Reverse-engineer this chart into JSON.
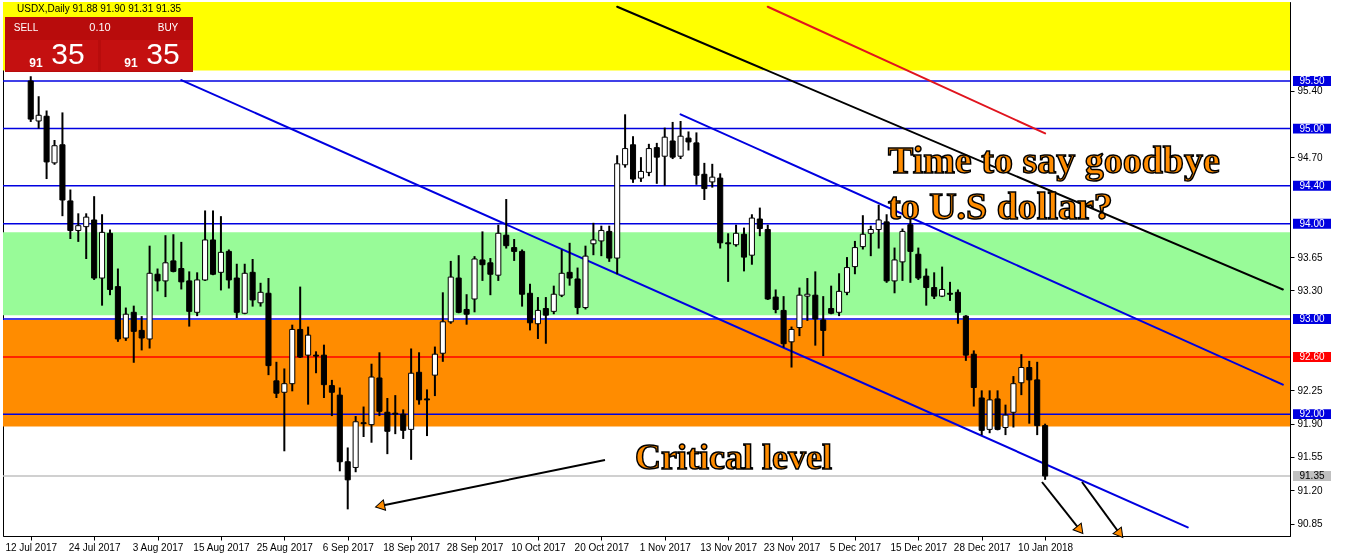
{
  "chart_data": {
    "type": "candlestick",
    "title": "USDX,Daily 91.88 91.90 91.31 91.35",
    "categories": [
      "12 Jul 2017",
      null,
      null,
      null,
      null,
      null,
      null,
      null,
      "24 Jul 2017",
      null,
      null,
      null,
      null,
      null,
      null,
      null,
      "3 Aug 2017",
      null,
      null,
      null,
      null,
      null,
      null,
      null,
      "15 Aug 2017",
      null,
      null,
      null,
      null,
      null,
      null,
      null,
      "25 Aug 2017",
      null,
      null,
      null,
      null,
      null,
      null,
      null,
      "6 Sep 2017",
      null,
      null,
      null,
      null,
      null,
      null,
      null,
      "18 Sep 2017",
      null,
      null,
      null,
      null,
      null,
      null,
      null,
      "28 Sep 2017",
      null,
      null,
      null,
      null,
      null,
      null,
      null,
      "10 Oct 2017",
      null,
      null,
      null,
      null,
      null,
      null,
      null,
      "20 Oct 2017",
      null,
      null,
      null,
      null,
      null,
      null,
      null,
      "1 Nov 2017",
      null,
      null,
      null,
      null,
      null,
      null,
      null,
      "13 Nov 2017",
      null,
      null,
      null,
      null,
      null,
      null,
      null,
      "23 Nov 2017",
      null,
      null,
      null,
      null,
      null,
      null,
      null,
      "5 Dec 2017",
      null,
      null,
      null,
      null,
      null,
      null,
      null,
      "15 Dec 2017",
      null,
      null,
      null,
      null,
      null,
      null,
      null,
      "28 Dec 2017",
      null,
      null,
      null,
      null,
      null,
      null,
      null,
      "10 Jan 2018",
      null,
      null,
      null,
      null,
      null,
      null,
      null,
      null,
      null,
      null,
      null,
      null,
      null,
      null,
      null,
      null,
      null,
      null,
      null,
      null,
      null,
      null,
      null,
      null,
      null,
      null,
      null,
      null,
      null,
      null
    ],
    "ohlc": [
      [
        95.5,
        95.55,
        95.07,
        95.1
      ],
      [
        95.08,
        95.34,
        95.0,
        95.14
      ],
      [
        95.13,
        95.19,
        94.47,
        94.65
      ],
      [
        94.64,
        94.88,
        94.62,
        94.82
      ],
      [
        94.83,
        95.17,
        94.08,
        94.25
      ],
      [
        94.24,
        94.36,
        93.84,
        93.93
      ],
      [
        93.93,
        94.11,
        93.81,
        93.98
      ],
      [
        93.97,
        94.11,
        93.63,
        94.07
      ],
      [
        94.04,
        94.29,
        93.41,
        93.43
      ],
      [
        93.43,
        94.1,
        93.14,
        93.91
      ],
      [
        93.9,
        93.94,
        93.25,
        93.31
      ],
      [
        93.34,
        93.53,
        92.76,
        92.79
      ],
      [
        92.8,
        93.12,
        92.77,
        93.05
      ],
      [
        93.07,
        93.14,
        92.54,
        92.87
      ],
      [
        92.88,
        93.03,
        92.67,
        92.8
      ],
      [
        92.79,
        93.77,
        92.69,
        93.48
      ],
      [
        93.47,
        93.53,
        93.29,
        93.4
      ],
      [
        93.4,
        93.88,
        93.23,
        93.59
      ],
      [
        93.61,
        93.89,
        93.49,
        93.5
      ],
      [
        93.53,
        93.81,
        93.31,
        93.39
      ],
      [
        93.4,
        93.5,
        92.92,
        93.08
      ],
      [
        93.07,
        93.49,
        93.03,
        93.41
      ],
      [
        93.41,
        94.14,
        93.4,
        93.83
      ],
      [
        93.83,
        94.14,
        93.46,
        93.47
      ],
      [
        93.49,
        94.08,
        93.3,
        93.7
      ],
      [
        93.71,
        93.73,
        93.32,
        93.41
      ],
      [
        93.43,
        93.58,
        93.01,
        93.07
      ],
      [
        93.06,
        93.58,
        93.05,
        93.48
      ],
      [
        93.49,
        93.63,
        93.13,
        93.2
      ],
      [
        93.17,
        93.38,
        93.13,
        93.28
      ],
      [
        93.27,
        93.43,
        92.41,
        92.51
      ],
      [
        92.35,
        92.55,
        92.17,
        92.22
      ],
      [
        92.23,
        92.48,
        91.61,
        92.32
      ],
      [
        92.32,
        92.94,
        92.24,
        92.89
      ],
      [
        92.89,
        93.34,
        92.59,
        92.6
      ],
      [
        92.62,
        92.92,
        92.1,
        92.83
      ],
      [
        92.62,
        92.66,
        92.43,
        92.61
      ],
      [
        92.62,
        92.73,
        92.17,
        92.31
      ],
      [
        92.3,
        92.36,
        91.98,
        92.23
      ],
      [
        92.2,
        92.28,
        91.4,
        91.5
      ],
      [
        91.5,
        91.65,
        91.0,
        91.31
      ],
      [
        91.44,
        91.98,
        91.39,
        91.92
      ],
      [
        91.91,
        92.08,
        91.76,
        91.9
      ],
      [
        91.89,
        92.53,
        91.7,
        92.39
      ],
      [
        92.38,
        92.65,
        91.98,
        92.03
      ],
      [
        92.02,
        92.17,
        91.58,
        91.82
      ],
      [
        92.01,
        92.2,
        91.79,
        92.0
      ],
      [
        92.0,
        92.05,
        91.74,
        91.83
      ],
      [
        91.84,
        92.69,
        91.52,
        92.43
      ],
      [
        92.44,
        92.65,
        92.1,
        92.15
      ],
      [
        92.16,
        92.26,
        91.77,
        92.15
      ],
      [
        92.41,
        92.71,
        92.19,
        92.63
      ],
      [
        92.64,
        93.28,
        92.55,
        92.97
      ],
      [
        92.97,
        93.61,
        92.95,
        93.44
      ],
      [
        93.43,
        93.67,
        93.06,
        93.07
      ],
      [
        93.1,
        93.26,
        92.94,
        93.05
      ],
      [
        93.21,
        93.66,
        93.07,
        93.63
      ],
      [
        93.62,
        93.92,
        93.4,
        93.57
      ],
      [
        93.59,
        93.64,
        93.25,
        93.47
      ],
      [
        93.46,
        93.99,
        93.4,
        93.9
      ],
      [
        93.88,
        94.26,
        93.74,
        93.77
      ],
      [
        93.75,
        93.84,
        93.61,
        93.71
      ],
      [
        93.71,
        93.73,
        93.13,
        93.26
      ],
      [
        93.27,
        93.37,
        92.88,
        92.96
      ],
      [
        92.95,
        93.23,
        92.79,
        93.09
      ],
      [
        93.11,
        93.23,
        92.74,
        93.04
      ],
      [
        93.08,
        93.35,
        93.05,
        93.26
      ],
      [
        93.25,
        93.73,
        93.23,
        93.48
      ],
      [
        93.49,
        93.8,
        93.35,
        93.43
      ],
      [
        93.42,
        93.54,
        93.05,
        93.12
      ],
      [
        93.12,
        93.77,
        93.1,
        93.66
      ],
      [
        93.79,
        94.01,
        93.67,
        93.83
      ],
      [
        93.82,
        93.98,
        93.66,
        93.93
      ],
      [
        93.92,
        93.98,
        93.6,
        93.64
      ],
      [
        93.64,
        94.72,
        93.47,
        94.63
      ],
      [
        94.62,
        95.15,
        94.59,
        94.79
      ],
      [
        94.83,
        94.92,
        94.43,
        94.47
      ],
      [
        94.48,
        94.7,
        94.44,
        94.55
      ],
      [
        94.54,
        94.84,
        94.5,
        94.79
      ],
      [
        94.8,
        94.85,
        94.42,
        94.7
      ],
      [
        94.71,
        95.01,
        94.4,
        94.91
      ],
      [
        94.87,
        95.07,
        94.68,
        94.7
      ],
      [
        94.71,
        95.08,
        94.68,
        94.92
      ],
      [
        94.9,
        94.97,
        94.77,
        94.86
      ],
      [
        94.85,
        94.96,
        94.41,
        94.51
      ],
      [
        94.52,
        94.64,
        94.25,
        94.37
      ],
      [
        94.44,
        94.63,
        94.38,
        94.49
      ],
      [
        94.48,
        94.53,
        93.74,
        93.8
      ],
      [
        93.8,
        93.9,
        93.39,
        93.79
      ],
      [
        93.78,
        93.99,
        93.76,
        93.9
      ],
      [
        93.89,
        93.96,
        93.5,
        93.65
      ],
      [
        93.67,
        94.1,
        93.57,
        94.06
      ],
      [
        94.05,
        94.17,
        93.87,
        93.95
      ],
      [
        93.94,
        93.99,
        93.2,
        93.21
      ],
      [
        93.23,
        93.31,
        93.06,
        93.1
      ],
      [
        93.09,
        93.24,
        92.7,
        92.74
      ],
      [
        92.76,
        92.92,
        92.49,
        92.89
      ],
      [
        92.91,
        93.33,
        92.82,
        93.25
      ],
      [
        93.24,
        93.43,
        92.98,
        93.26
      ],
      [
        93.25,
        93.5,
        92.72,
        93.0
      ],
      [
        92.99,
        93.24,
        92.61,
        92.88
      ],
      [
        93.11,
        93.35,
        93.05,
        93.06
      ],
      [
        93.07,
        93.48,
        93.03,
        93.29
      ],
      [
        93.28,
        93.65,
        93.25,
        93.54
      ],
      [
        93.55,
        93.82,
        93.47,
        93.75
      ],
      [
        93.76,
        94.09,
        93.73,
        93.89
      ],
      [
        93.9,
        93.98,
        93.66,
        93.94
      ],
      [
        93.94,
        94.2,
        93.74,
        94.04
      ],
      [
        94.02,
        94.1,
        93.38,
        93.4
      ],
      [
        93.4,
        93.75,
        93.27,
        93.62
      ],
      [
        93.6,
        93.95,
        93.4,
        93.92
      ],
      [
        93.99,
        94.05,
        93.38,
        93.71
      ],
      [
        93.68,
        93.75,
        93.41,
        93.43
      ],
      [
        93.45,
        93.53,
        93.14,
        93.33
      ],
      [
        93.33,
        93.49,
        93.21,
        93.24
      ],
      [
        93.24,
        93.55,
        93.23,
        93.31
      ],
      [
        93.27,
        93.39,
        93.19,
        93.26
      ],
      [
        93.28,
        93.31,
        92.95,
        93.07
      ],
      [
        93.03,
        93.04,
        92.56,
        92.62
      ],
      [
        92.63,
        92.67,
        92.08,
        92.28
      ],
      [
        92.17,
        92.25,
        91.78,
        91.83
      ],
      [
        91.84,
        92.25,
        91.8,
        92.15
      ],
      [
        92.16,
        92.25,
        91.83,
        91.84
      ],
      [
        91.86,
        92.1,
        91.78,
        91.99
      ],
      [
        92.02,
        92.4,
        91.86,
        92.32
      ],
      [
        92.33,
        92.63,
        92.2,
        92.49
      ],
      [
        92.49,
        92.56,
        91.9,
        92.36
      ],
      [
        92.36,
        92.55,
        91.78,
        91.88
      ],
      [
        91.88,
        91.9,
        91.31,
        91.35
      ],
      null,
      null,
      null,
      null,
      null,
      null,
      null,
      null,
      null,
      null,
      null,
      null,
      null,
      null,
      null,
      null,
      null,
      null,
      null,
      null,
      null,
      null,
      null,
      null,
      null,
      null,
      null,
      null,
      null,
      null
    ],
    "series": [
      {
        "type": "line",
        "color": "#0000e0",
        "values": [
          null,
          null,
          null,
          null,
          null,
          null,
          null,
          null,
          null,
          null,
          null,
          null,
          null,
          null,
          null,
          null,
          null,
          null,
          null,
          95.51,
          null,
          null,
          null,
          null,
          null,
          null,
          null,
          null,
          null,
          null,
          null,
          null,
          null,
          null,
          null,
          null,
          null,
          null,
          null,
          null,
          null,
          null,
          null,
          null,
          null,
          null,
          null,
          null,
          null,
          null,
          null,
          null,
          null,
          null,
          null,
          null,
          null,
          null,
          null,
          null,
          null,
          null,
          null,
          null,
          null,
          null,
          null,
          null,
          null,
          null,
          null,
          null,
          null,
          null,
          null,
          null,
          null,
          null,
          null,
          null,
          null,
          null,
          null,
          null,
          null,
          null,
          null,
          null,
          null,
          null,
          null,
          null,
          null,
          null,
          null,
          null,
          null,
          null,
          null,
          null,
          null,
          null,
          null,
          null,
          null,
          null,
          null,
          null,
          null,
          null,
          null,
          null,
          null,
          null,
          null,
          null,
          null,
          null,
          null,
          null,
          null,
          null,
          null,
          null,
          null,
          null,
          null,
          null,
          null,
          null,
          null,
          null,
          null,
          null,
          null,
          null,
          null,
          null,
          null,
          null,
          null,
          null,
          null,
          null,
          null,
          null,
          90.81,
          null,
          null,
          null,
          null,
          null,
          null,
          null,
          null,
          null,
          null,
          null,
          null
        ]
      },
      {
        "type": "line",
        "color": "#0000e0",
        "values": [
          null,
          null,
          null,
          null,
          null,
          null,
          null,
          null,
          null,
          null,
          null,
          null,
          null,
          null,
          null,
          null,
          null,
          null,
          null,
          null,
          null,
          null,
          null,
          null,
          null,
          null,
          null,
          null,
          null,
          null,
          null,
          null,
          null,
          null,
          null,
          null,
          null,
          null,
          null,
          null,
          null,
          null,
          null,
          null,
          null,
          null,
          null,
          null,
          null,
          null,
          null,
          null,
          null,
          null,
          null,
          null,
          null,
          null,
          null,
          null,
          null,
          null,
          null,
          null,
          null,
          null,
          null,
          null,
          null,
          null,
          null,
          null,
          null,
          null,
          null,
          null,
          null,
          null,
          null,
          null,
          null,
          null,
          95.15,
          null,
          null,
          null,
          null,
          null,
          null,
          null,
          null,
          null,
          null,
          null,
          null,
          null,
          null,
          null,
          null,
          null,
          null,
          null,
          null,
          null,
          null,
          null,
          null,
          null,
          null,
          null,
          null,
          null,
          null,
          null,
          null,
          null,
          null,
          null,
          null,
          null,
          null,
          null,
          null,
          null,
          null,
          null,
          null,
          null,
          null,
          null,
          null,
          null,
          null,
          null,
          null,
          null,
          null,
          null,
          null,
          null,
          null,
          null,
          null,
          null,
          null,
          null,
          null,
          null,
          null,
          null,
          null,
          null,
          null,
          null,
          null,
          null,
          null,
          null,
          92.31
        ]
      },
      {
        "type": "line",
        "color": "#000000",
        "values": [
          null,
          null,
          null,
          null,
          null,
          null,
          null,
          null,
          null,
          null,
          null,
          null,
          null,
          null,
          null,
          null,
          null,
          null,
          null,
          null,
          null,
          null,
          null,
          null,
          null,
          null,
          null,
          null,
          null,
          null,
          null,
          null,
          null,
          null,
          null,
          null,
          null,
          null,
          null,
          null,
          null,
          null,
          null,
          null,
          null,
          null,
          null,
          null,
          null,
          null,
          null,
          null,
          null,
          null,
          null,
          null,
          null,
          null,
          null,
          null,
          null,
          null,
          null,
          null,
          null,
          null,
          null,
          null,
          null,
          null,
          null,
          null,
          null,
          null,
          96.28,
          null,
          null,
          null,
          null,
          null,
          null,
          null,
          null,
          null,
          null,
          null,
          null,
          null,
          null,
          null,
          null,
          null,
          null,
          null,
          null,
          null,
          null,
          null,
          null,
          null,
          null,
          null,
          null,
          null,
          null,
          null,
          null,
          null,
          null,
          null,
          null,
          null,
          null,
          null,
          null,
          null,
          null,
          null,
          null,
          null,
          null,
          null,
          null,
          null,
          null,
          null,
          null,
          null,
          null,
          null,
          null,
          null,
          null,
          null,
          null,
          null,
          null,
          null,
          null,
          null,
          null,
          null,
          null,
          null,
          null,
          null,
          null,
          null,
          null,
          null,
          null,
          null,
          null,
          null,
          null,
          null,
          null,
          null,
          93.31
        ]
      },
      {
        "type": "line",
        "color": "#e0141e",
        "values": [
          null,
          null,
          null,
          null,
          null,
          null,
          null,
          null,
          null,
          null,
          null,
          null,
          null,
          null,
          null,
          null,
          null,
          null,
          null,
          null,
          null,
          null,
          null,
          null,
          null,
          null,
          null,
          null,
          null,
          null,
          null,
          null,
          null,
          null,
          null,
          null,
          null,
          null,
          null,
          null,
          null,
          null,
          null,
          null,
          null,
          null,
          null,
          null,
          null,
          null,
          null,
          null,
          null,
          null,
          null,
          null,
          null,
          null,
          null,
          null,
          null,
          null,
          null,
          null,
          null,
          null,
          null,
          null,
          null,
          null,
          null,
          null,
          null,
          null,
          null,
          null,
          null,
          null,
          null,
          null,
          null,
          null,
          null,
          null,
          null,
          null,
          null,
          null,
          null,
          null,
          null,
          null,
          null,
          96.28,
          null,
          null,
          null,
          null,
          null,
          null,
          null,
          null,
          null,
          null,
          null,
          null,
          null,
          null,
          null,
          null,
          null,
          null,
          null,
          null,
          null,
          null,
          null,
          null,
          null,
          null,
          null,
          null,
          null,
          null,
          null,
          null,
          null,
          null,
          94.95,
          null,
          null,
          null,
          null,
          null,
          null,
          null,
          null,
          null,
          null,
          null,
          null,
          null,
          null,
          null,
          null,
          null,
          null,
          null,
          null,
          null,
          null,
          null,
          null,
          null,
          null,
          null,
          null,
          null,
          null
        ]
      }
    ],
    "ylim": [
      90.72,
      96.33
    ],
    "yticks": [
      {
        "value": 90.85,
        "label": "90.85"
      },
      {
        "value": 91.2,
        "label": "91.20"
      },
      {
        "value": 91.55,
        "label": "91.55"
      },
      {
        "value": 91.9,
        "label": "91.90"
      },
      {
        "value": 92.25,
        "label": "92.25"
      },
      {
        "value": 93.3,
        "label": "93.30"
      },
      {
        "value": 93.65,
        "label": "93.65"
      },
      {
        "value": 94.7,
        "label": "94.70"
      },
      {
        "value": 95.4,
        "label": "95.40"
      }
    ],
    "ref_lines": [
      {
        "axis": "y",
        "value": 95.5,
        "label": "95.50",
        "color": "#0000e0"
      },
      {
        "axis": "y",
        "value": 95.0,
        "label": "95.00",
        "color": "#0000e0"
      },
      {
        "axis": "y",
        "value": 94.4,
        "label": "94.40",
        "color": "#0000e0"
      },
      {
        "axis": "y",
        "value": 94.0,
        "label": "94.00",
        "color": "#0000e0"
      },
      {
        "axis": "y",
        "value": 93.0,
        "label": "93.00",
        "color": "#0000e0"
      },
      {
        "axis": "y",
        "value": 92.6,
        "label": "92.60",
        "color": "#ff0000"
      },
      {
        "axis": "y",
        "value": 92.0,
        "label": "92.00",
        "color": "#0000e0"
      },
      {
        "axis": "y",
        "value": 91.35,
        "label": "91.35",
        "color": "#c0c0c0"
      }
    ],
    "bands": [
      {
        "axis": "y",
        "from": 95.61,
        "to": 96.33,
        "color": "#ffff00"
      },
      {
        "axis": "y",
        "from": 93.04,
        "to": 93.91,
        "color": "#98fb98"
      },
      {
        "axis": "y",
        "from": 91.87,
        "to": 92.99,
        "color": "#ff8c00"
      }
    ],
    "annotations": [
      "Time to say goodbye to U.S dollar?",
      "Critical level",
      "SELL",
      "0.10",
      "BUY",
      "91 35",
      "91 35"
    ]
  }
}
